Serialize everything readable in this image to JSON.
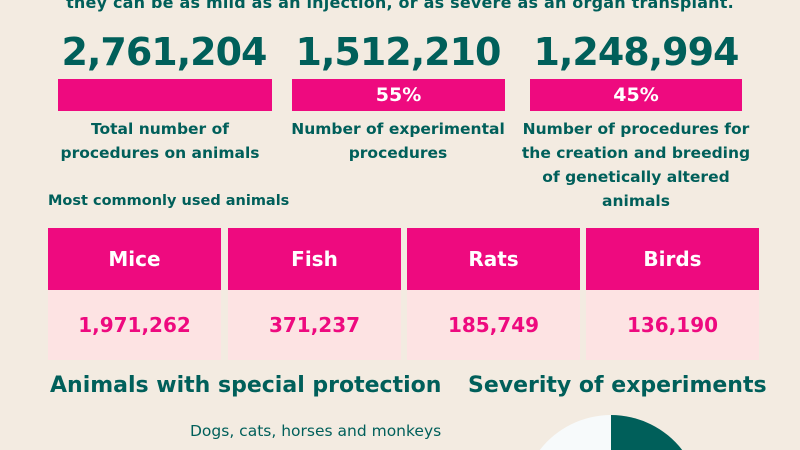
{
  "intro_text": "they can be as mild as an injection, or as severe as an organ transplant.",
  "stats": [
    {
      "value": "2,761,204",
      "percent": "",
      "percent_value": 100,
      "label": "Total number of procedures on animals"
    },
    {
      "value": "1,512,210",
      "percent": "55%",
      "percent_value": 55,
      "label": "Number of experimental procedures"
    },
    {
      "value": "1,248,994",
      "percent": "45%",
      "percent_value": 45,
      "label": "Number of procedures for the creation and breeding of genetically altered animals"
    }
  ],
  "animals": {
    "title": "Most commonly used animals",
    "items": [
      {
        "name": "Mice",
        "count": "1,971,262"
      },
      {
        "name": "Fish",
        "count": "371,237"
      },
      {
        "name": "Rats",
        "count": "185,749"
      },
      {
        "name": "Birds",
        "count": "136,190"
      }
    ]
  },
  "protection": {
    "title": "Animals with special protection",
    "text": "Dogs, cats, horses and monkeys"
  },
  "severity": {
    "title": "Severity of experiments"
  },
  "colors": {
    "background": "#f3ebe1",
    "teal": "#005f5a",
    "pink": "#ee0a7f",
    "light_pink": "#fde3e3",
    "pie_light": "#f7fafb"
  }
}
